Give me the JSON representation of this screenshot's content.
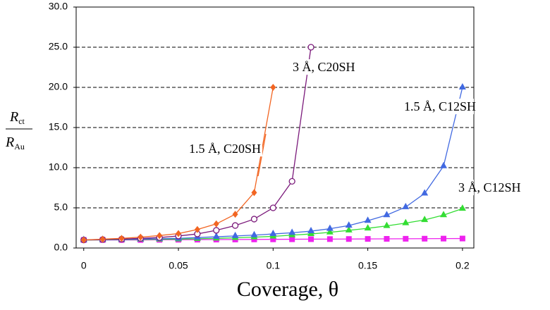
{
  "chart_data": {
    "type": "line",
    "xlabel": "Coverage, θ",
    "ylabel": {
      "top": [
        "R",
        "ct"
      ],
      "bottom": [
        "R",
        "Au"
      ]
    },
    "xlim": [
      -0.004,
      0.206
    ],
    "ylim": [
      0,
      30
    ],
    "xticks": [
      0,
      0.05,
      0.1,
      0.15,
      0.2
    ],
    "yticks": [
      {
        "value": 0,
        "label": "0.0"
      },
      {
        "value": 5,
        "label": "5.0"
      },
      {
        "value": 10,
        "label": "10.0"
      },
      {
        "value": 15,
        "label": "15.0"
      },
      {
        "value": 20,
        "label": "20.0"
      },
      {
        "value": 25,
        "label": "25.0"
      },
      {
        "value": 30,
        "label": "30.0"
      }
    ],
    "grid": true,
    "series": [
      {
        "name": "1.5 Å, C20SH",
        "color": "#f26522",
        "marker": "diamond",
        "x": [
          0,
          0.01,
          0.02,
          0.03,
          0.04,
          0.05,
          0.06,
          0.07,
          0.08,
          0.09,
          0.1
        ],
        "values": [
          1.0,
          1.1,
          1.2,
          1.35,
          1.55,
          1.8,
          2.3,
          3.0,
          4.2,
          6.9,
          20.0
        ]
      },
      {
        "name": "3 Å, C20SH",
        "color": "#7b1a7b",
        "marker": "circle-open",
        "x": [
          0,
          0.01,
          0.02,
          0.03,
          0.04,
          0.05,
          0.06,
          0.07,
          0.08,
          0.09,
          0.1,
          0.11,
          0.12
        ],
        "values": [
          1.0,
          1.05,
          1.1,
          1.2,
          1.3,
          1.5,
          1.75,
          2.2,
          2.8,
          3.6,
          5.0,
          8.3,
          25.0
        ]
      },
      {
        "name": "1.5 Å, C12SH",
        "color": "#4169e1",
        "marker": "triangle",
        "x": [
          0,
          0.01,
          0.02,
          0.03,
          0.04,
          0.05,
          0.06,
          0.07,
          0.08,
          0.09,
          0.1,
          0.11,
          0.12,
          0.13,
          0.14,
          0.15,
          0.16,
          0.17,
          0.18,
          0.19,
          0.2
        ],
        "values": [
          1.0,
          1.03,
          1.06,
          1.1,
          1.15,
          1.2,
          1.3,
          1.4,
          1.5,
          1.6,
          1.75,
          1.9,
          2.1,
          2.4,
          2.8,
          3.4,
          4.1,
          5.1,
          6.8,
          10.2,
          20.0
        ]
      },
      {
        "name": "3 Å, C12SH",
        "color": "#33dd33",
        "marker": "triangle",
        "x": [
          0,
          0.01,
          0.02,
          0.03,
          0.04,
          0.05,
          0.06,
          0.07,
          0.08,
          0.09,
          0.1,
          0.11,
          0.12,
          0.13,
          0.14,
          0.15,
          0.16,
          0.17,
          0.18,
          0.19,
          0.2
        ],
        "values": [
          1.0,
          1.01,
          1.03,
          1.05,
          1.08,
          1.1,
          1.15,
          1.2,
          1.27,
          1.35,
          1.45,
          1.6,
          1.75,
          1.95,
          2.2,
          2.45,
          2.75,
          3.1,
          3.5,
          4.1,
          4.9
        ]
      },
      {
        "color": "#ee22ee",
        "marker": "square",
        "x": [
          0,
          0.01,
          0.02,
          0.03,
          0.04,
          0.05,
          0.06,
          0.07,
          0.08,
          0.09,
          0.1,
          0.11,
          0.12,
          0.13,
          0.14,
          0.15,
          0.16,
          0.17,
          0.18,
          0.19,
          0.2
        ],
        "values": [
          1.0,
          1.0,
          1.0,
          1.0,
          1.02,
          1.03,
          1.04,
          1.05,
          1.06,
          1.07,
          1.08,
          1.09,
          1.1,
          1.11,
          1.12,
          1.13,
          1.14,
          1.15,
          1.16,
          1.17,
          1.18
        ]
      }
    ]
  }
}
